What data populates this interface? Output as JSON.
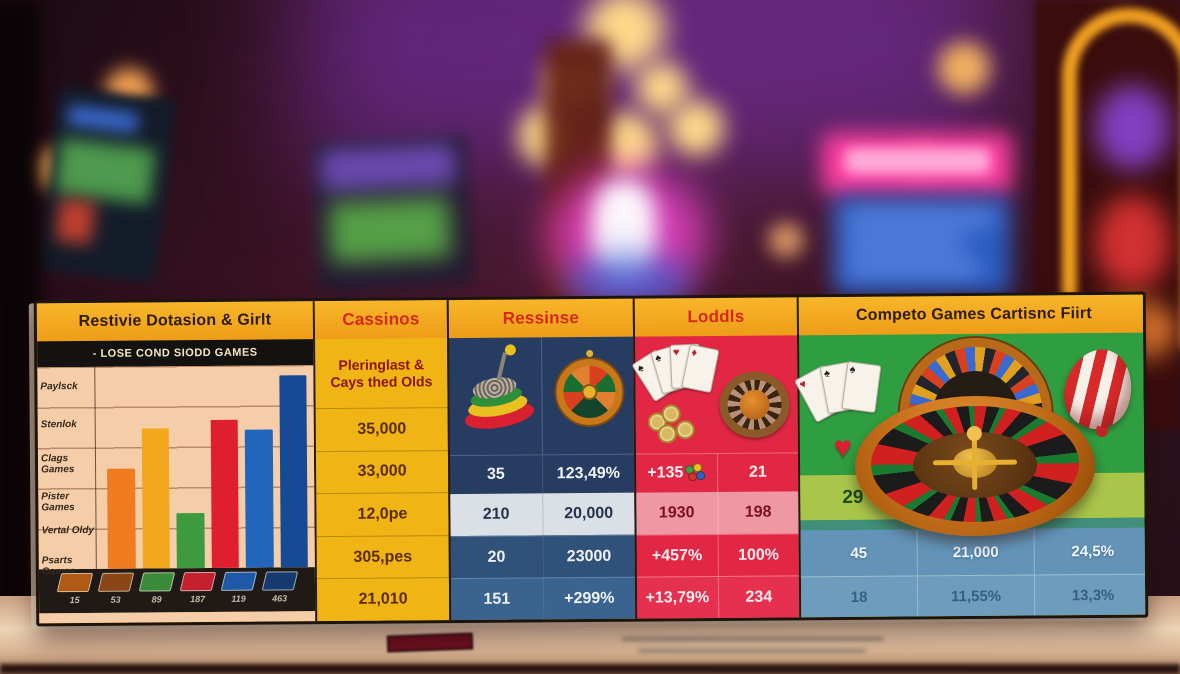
{
  "colors": {
    "header_band": "#f2a41d",
    "header_text_dark": "#2d1c08",
    "header_text_red": "#d6271a",
    "chart_bg": "#f6cda9",
    "cassinos_bg": "#f0b514",
    "ressinse_navy": "#273c61",
    "ressinse_light_row": "#dbdfe6",
    "loddls_red": "#e22745",
    "loddls_pink_row": "#ef97a2",
    "competo_green": "#2f9e40",
    "competo_band_green": "#a9c64b",
    "competo_blue_row": "#6394b8",
    "legend_strip": "#1f1a15",
    "tabletop": "#e3c19d"
  },
  "icons": {
    "heart": "♥",
    "spade": "♠",
    "diamond": "♦"
  },
  "panel": {
    "chart": {
      "header": "Restivie Dotasion & Girlt",
      "subheader": "- LOSE COND SIODD GAMES"
    },
    "cassinos": {
      "header": "Cassinos",
      "subheader": "Pleringlast & Cays thed Olds",
      "values": [
        "35,000",
        "33,000",
        "12,0pe",
        "305,pes",
        "21,010"
      ]
    },
    "ressinse": {
      "header": "Ressinse",
      "rows": [
        [
          "35",
          "123,49%"
        ],
        [
          "210",
          "20,000"
        ],
        [
          "20",
          "23000"
        ],
        [
          "151",
          "+299%"
        ]
      ]
    },
    "loddls": {
      "header": "Loddls",
      "rows": [
        [
          "+135",
          "21"
        ],
        [
          "1930",
          "198"
        ],
        [
          "+457%",
          "100%"
        ],
        [
          "+13,79%",
          "234"
        ]
      ]
    },
    "competo": {
      "header": "Competo Games Cartisnc Fiirt",
      "band_value": "29",
      "rows": [
        [
          "45",
          "21,000",
          "24,5%"
        ],
        [
          "18",
          "11,55%",
          "13,3%"
        ]
      ]
    }
  },
  "chart_data": {
    "type": "bar",
    "title": "Restivie Dotasion & Girlt",
    "subtitle": "- LOSE COND SIODD GAMES",
    "row_labels": [
      "Paylsck",
      "Stenlok",
      "Clags Games",
      "Pister Games",
      "Vertal Oldy",
      "Psarts Games"
    ],
    "categories": [
      "15",
      "53",
      "89",
      "187",
      "119",
      "463"
    ],
    "values": [
      100,
      140,
      55,
      148,
      138,
      192
    ],
    "ylim": [
      0,
      200
    ],
    "grid": true,
    "legend_position": "bottom",
    "colors": [
      "#ef7d1f",
      "#f2a71c",
      "#3d9a3f",
      "#df1f2f",
      "#2165bd",
      "#174a94"
    ],
    "legend_colors": [
      "#b05a16",
      "#8a4616",
      "#3a8a3a",
      "#c42030",
      "#2058a8",
      "#173a6e"
    ]
  }
}
